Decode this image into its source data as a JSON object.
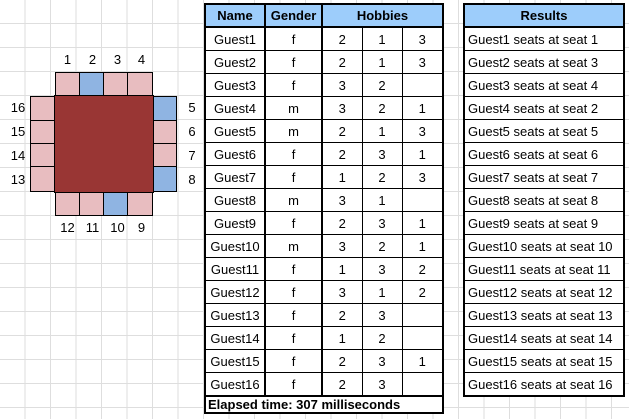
{
  "colors": {
    "seat-female": "#E8BDC0",
    "seat-male": "#8FB4E2",
    "dining-table": "#993634",
    "table-header": "#9DCDFB",
    "grid-line": "#DEDEDE"
  },
  "seat_map": {
    "top": {
      "labels": [
        "1",
        "2",
        "3",
        "4"
      ],
      "genders": [
        "f",
        "m",
        "f",
        "f"
      ]
    },
    "right": {
      "labels": [
        "5",
        "6",
        "7",
        "8"
      ],
      "genders": [
        "m",
        "f",
        "f",
        "m"
      ]
    },
    "bottom": {
      "labels": [
        "12",
        "11",
        "10",
        "9"
      ],
      "genders": [
        "f",
        "f",
        "m",
        "f"
      ]
    },
    "left": {
      "labels": [
        "16",
        "15",
        "14",
        "13"
      ],
      "genders": [
        "f",
        "f",
        "f",
        "f"
      ]
    }
  },
  "guest_table": {
    "headers": {
      "name": "Name",
      "gender": "Gender",
      "hobbies": "Hobbies"
    },
    "rows": [
      {
        "name": "Guest1",
        "gender": "f",
        "hobbies": [
          "2",
          "1",
          "3"
        ]
      },
      {
        "name": "Guest2",
        "gender": "f",
        "hobbies": [
          "2",
          "1",
          "3"
        ]
      },
      {
        "name": "Guest3",
        "gender": "f",
        "hobbies": [
          "3",
          "2",
          ""
        ]
      },
      {
        "name": "Guest4",
        "gender": "m",
        "hobbies": [
          "3",
          "2",
          "1"
        ]
      },
      {
        "name": "Guest5",
        "gender": "m",
        "hobbies": [
          "2",
          "1",
          "3"
        ]
      },
      {
        "name": "Guest6",
        "gender": "f",
        "hobbies": [
          "2",
          "3",
          "1"
        ]
      },
      {
        "name": "Guest7",
        "gender": "f",
        "hobbies": [
          "1",
          "2",
          "3"
        ]
      },
      {
        "name": "Guest8",
        "gender": "m",
        "hobbies": [
          "3",
          "1",
          ""
        ]
      },
      {
        "name": "Guest9",
        "gender": "f",
        "hobbies": [
          "2",
          "3",
          "1"
        ]
      },
      {
        "name": "Guest10",
        "gender": "m",
        "hobbies": [
          "3",
          "2",
          "1"
        ]
      },
      {
        "name": "Guest11",
        "gender": "f",
        "hobbies": [
          "1",
          "3",
          "2"
        ]
      },
      {
        "name": "Guest12",
        "gender": "f",
        "hobbies": [
          "3",
          "1",
          "2"
        ]
      },
      {
        "name": "Guest13",
        "gender": "f",
        "hobbies": [
          "2",
          "3",
          ""
        ]
      },
      {
        "name": "Guest14",
        "gender": "f",
        "hobbies": [
          "1",
          "2",
          ""
        ]
      },
      {
        "name": "Guest15",
        "gender": "f",
        "hobbies": [
          "2",
          "3",
          "1"
        ]
      },
      {
        "name": "Guest16",
        "gender": "f",
        "hobbies": [
          "2",
          "3",
          ""
        ]
      }
    ]
  },
  "results_table": {
    "header": "Results",
    "rows": [
      "Guest1 seats at seat 1",
      "Guest2 seats at seat 3",
      "Guest3 seats at seat 4",
      "Guest4 seats at seat 2",
      "Guest5 seats at seat 5",
      "Guest6 seats at seat 6",
      "Guest7 seats at seat 7",
      "Guest8 seats at seat 8",
      "Guest9 seats at seat 9",
      "Guest10 seats at seat 10",
      "Guest11 seats at seat 11",
      "Guest12 seats at seat 12",
      "Guest13 seats at seat 13",
      "Guest14 seats at seat 14",
      "Guest15 seats at seat 15",
      "Guest16 seats at seat 16"
    ]
  },
  "status": {
    "elapsed_text": "Elapsed time: 307 milliseconds"
  }
}
